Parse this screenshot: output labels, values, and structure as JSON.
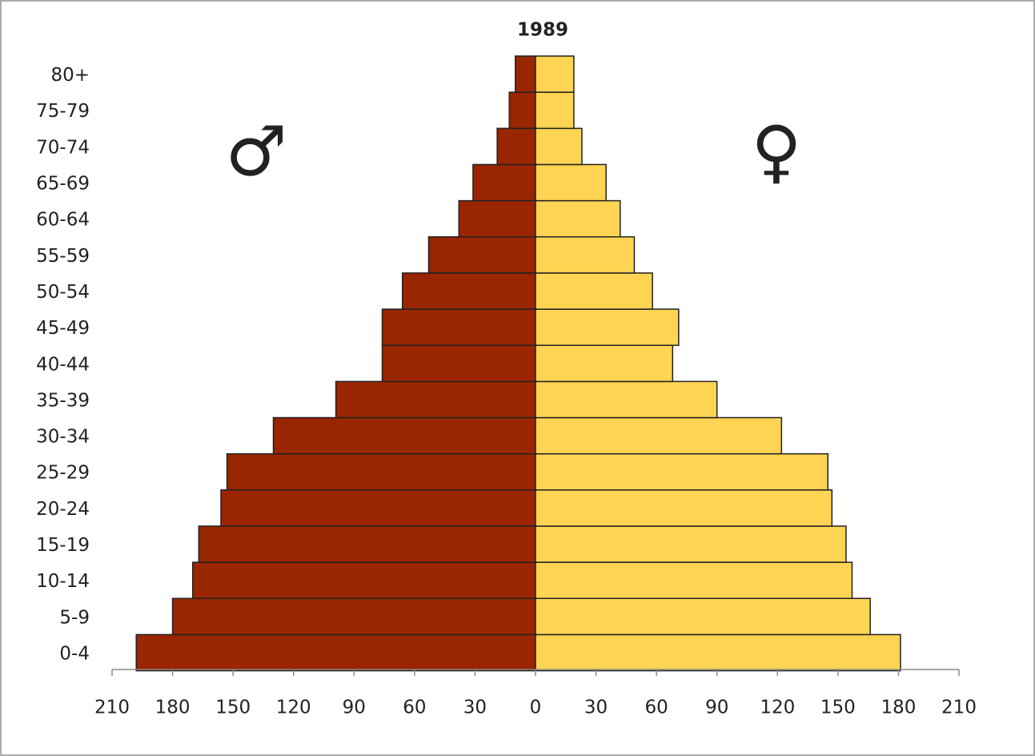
{
  "chart_data": {
    "type": "pyramid",
    "title": "1989",
    "annotations": [
      "♂",
      "♀"
    ],
    "categories": [
      "0-4",
      "5-9",
      "10-14",
      "15-19",
      "20-24",
      "25-29",
      "30-34",
      "35-39",
      "40-44",
      "45-49",
      "50-54",
      "55-59",
      "60-64",
      "65-69",
      "70-74",
      "75-79",
      "80+"
    ],
    "series": [
      {
        "color": "#992600",
        "values": [
          -198,
          -180,
          -170,
          -167,
          -156,
          -153,
          -130,
          -99,
          -76,
          -76,
          -66,
          -53,
          -38,
          -31,
          -19,
          -13,
          -10
        ]
      },
      {
        "color": "#ffd452",
        "values": [
          181,
          166,
          157,
          154,
          147,
          145,
          122,
          90,
          68,
          71,
          58,
          49,
          42,
          35,
          23,
          19,
          19
        ]
      }
    ],
    "xlim": [
      -210,
      210
    ],
    "xticks": [
      {
        "value": -210,
        "label": "210"
      },
      {
        "value": -180,
        "label": "180"
      },
      {
        "value": -150,
        "label": "150"
      },
      {
        "value": -120,
        "label": "120"
      },
      {
        "value": -90,
        "label": "90"
      },
      {
        "value": -60,
        "label": "60"
      },
      {
        "value": -30,
        "label": "30"
      },
      0,
      30,
      60,
      90,
      120,
      150,
      180,
      210
    ]
  }
}
